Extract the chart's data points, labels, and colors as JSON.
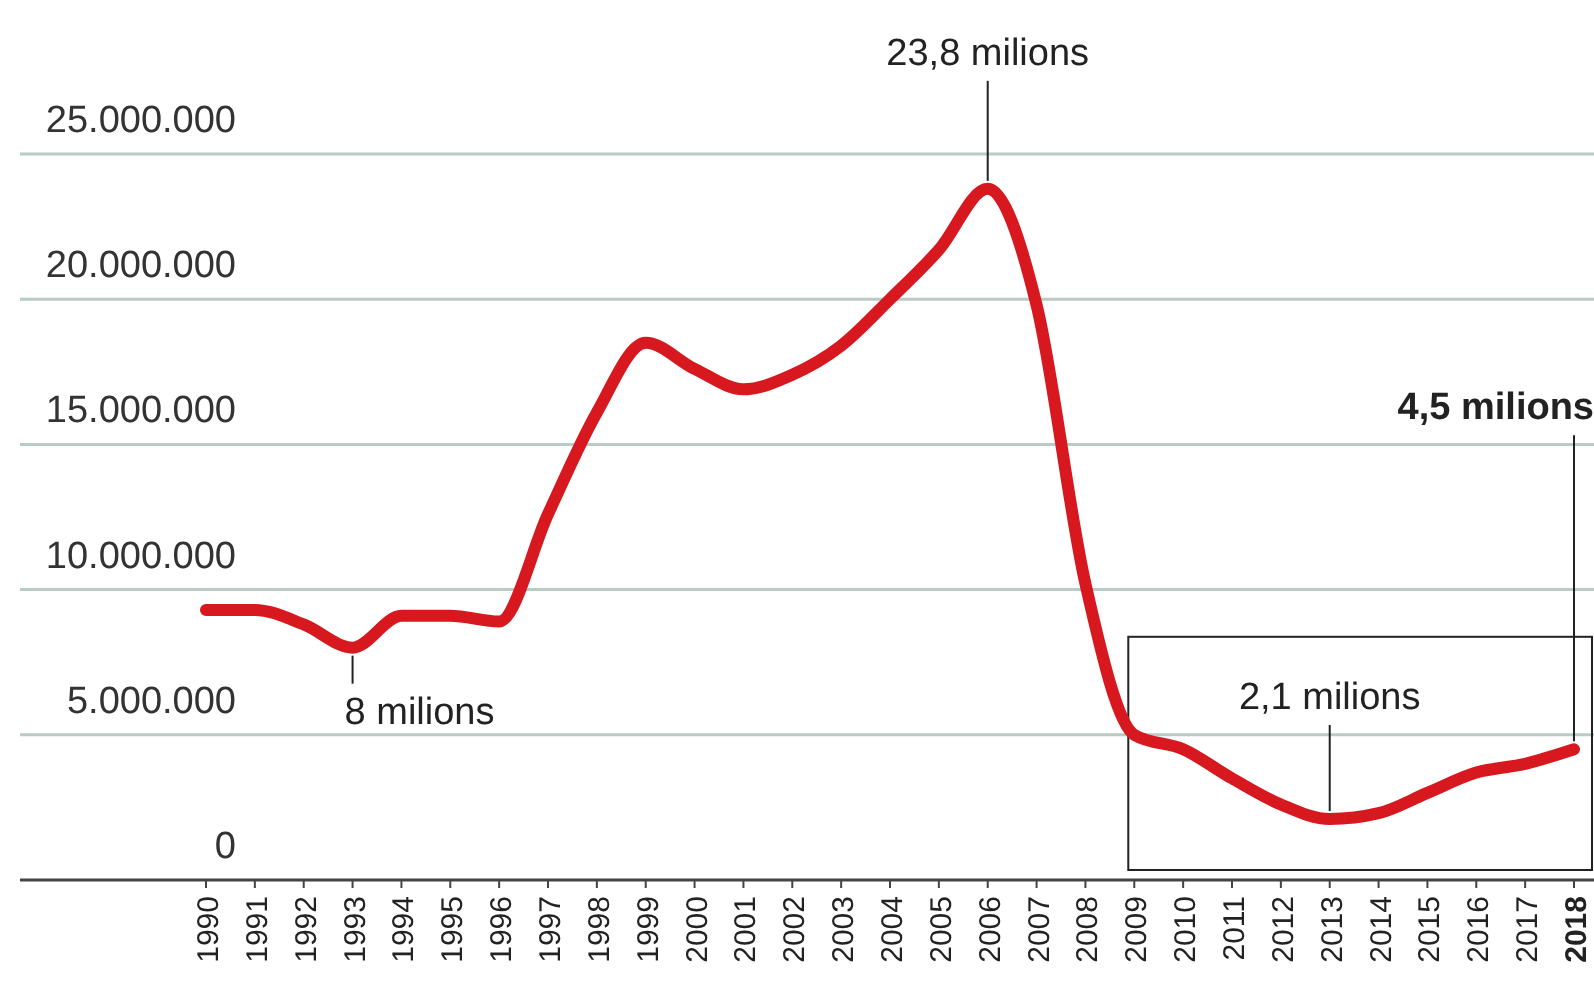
{
  "chart_data": {
    "type": "line",
    "categories": [
      "1990",
      "1991",
      "1992",
      "1993",
      "1994",
      "1995",
      "1996",
      "1997",
      "1998",
      "1999",
      "2000",
      "2001",
      "2002",
      "2003",
      "2004",
      "2005",
      "2006",
      "2007",
      "2008",
      "2009",
      "2010",
      "2011",
      "2012",
      "2013",
      "2014",
      "2015",
      "2016",
      "2017",
      "2018"
    ],
    "series": [
      {
        "color": "#d7191f",
        "values": [
          9300000,
          9300000,
          8800000,
          8000000,
          9100000,
          9100000,
          8900000,
          12600000,
          16100000,
          18500000,
          17600000,
          16900000,
          17400000,
          18400000,
          20000000,
          21700000,
          23800000,
          19800000,
          10200000,
          5000000,
          4500000,
          3500000,
          2600000,
          2100000,
          2300000,
          3000000,
          3700000,
          4000000,
          4500000
        ]
      }
    ],
    "ylim": [
      0,
      25000000
    ],
    "yticks": [
      0,
      {
        "value": 5000000,
        "label": "5.000.000"
      },
      {
        "value": 10000000,
        "label": "10.000.000"
      },
      {
        "value": 15000000,
        "label": "15.000.000"
      },
      {
        "value": 20000000,
        "label": "20.000.000"
      },
      {
        "value": 25000000,
        "label": "25.000.000"
      }
    ],
    "grid": "y",
    "marker": "none",
    "line_style": "solid",
    "annotations": [
      {
        "text": "8 milions",
        "x": "1993",
        "y": 8000000
      },
      {
        "text": "23,8 milions",
        "x": "2006",
        "y": 23800000
      },
      {
        "text": "2,1 milions",
        "x": "2013",
        "y": 2100000
      },
      {
        "text": "4,5 milions",
        "x": "2018",
        "y": 4500000
      }
    ]
  }
}
